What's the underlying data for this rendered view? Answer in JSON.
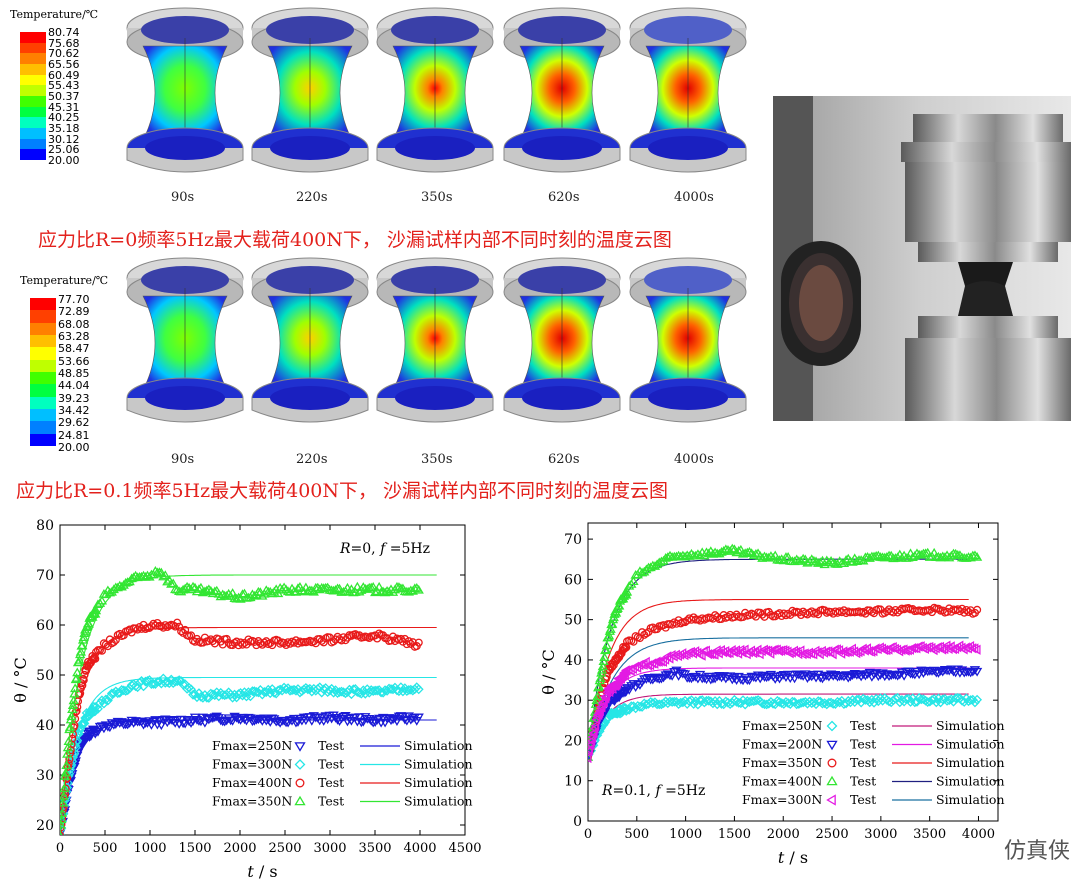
{
  "top_panel": {
    "legend_title": "Temperature/℃",
    "legend_values": [
      "80.74",
      "75.68",
      "70.62",
      "65.56",
      "60.49",
      "55.43",
      "50.37",
      "45.31",
      "40.25",
      "35.18",
      "30.12",
      "25.06",
      "20.00"
    ],
    "times": [
      "90s",
      "220s",
      "350s",
      "620s",
      "4000s"
    ],
    "caption": "应力比R=0频率5Hz最大载荷400N下， 沙漏试样内部不同时刻的温度云图"
  },
  "bottom_panel": {
    "legend_title": "Temperature/℃",
    "legend_values": [
      "77.70",
      "72.89",
      "68.08",
      "63.28",
      "58.47",
      "53.66",
      "48.85",
      "44.04",
      "39.23",
      "34.42",
      "29.62",
      "24.81",
      "20.00"
    ],
    "times": [
      "90s",
      "220s",
      "350s",
      "620s",
      "4000s"
    ],
    "caption": "应力比R=0.1频率5Hz最大载荷400N下， 沙漏试样内部不同时刻的温度云图"
  },
  "colors": {
    "scale": [
      "#ff0000",
      "#ff4000",
      "#ff8000",
      "#ffbf00",
      "#ffff00",
      "#bfff00",
      "#40ff00",
      "#00ff40",
      "#00ffbf",
      "#00bfff",
      "#0080ff",
      "#0000ff"
    ],
    "caption": "#e3211c"
  },
  "watermark": "仿真侠",
  "chart_data": [
    {
      "type": "line",
      "annotation_r": "R",
      "annotation_rest": "=0,",
      "annotation_f": "f",
      "annotation_f_rest": "=5Hz",
      "xlabel_italic": "t",
      "xlabel_rest": " / s",
      "ylabel": "θ / °C",
      "xlim": [
        0,
        4500
      ],
      "ylim": [
        18,
        80
      ],
      "xticks": [
        0,
        500,
        1000,
        1500,
        2000,
        2500,
        3000,
        3500,
        4000,
        4500
      ],
      "yticks": [
        20,
        30,
        40,
        50,
        60,
        70,
        80
      ],
      "legend_placement": "bottom-right",
      "series": [
        {
          "name": "Fmax=250N",
          "marker": "down-triangle",
          "color": "#1a1ad6",
          "sim_plateau": 41,
          "test": [
            [
              0,
              18
            ],
            [
              100,
              28
            ],
            [
              200,
              35
            ],
            [
              300,
              38
            ],
            [
              500,
              40
            ],
            [
              800,
              40.5
            ],
            [
              1000,
              40.5
            ],
            [
              1500,
              41
            ],
            [
              2000,
              41.5
            ],
            [
              2500,
              41
            ],
            [
              3000,
              41.5
            ],
            [
              3500,
              41
            ],
            [
              4000,
              41.5
            ]
          ]
        },
        {
          "name": "Fmax=300N",
          "marker": "diamond",
          "color": "#26e6e6",
          "sim_plateau": 49.5,
          "test": [
            [
              0,
              18
            ],
            [
              100,
              30
            ],
            [
              200,
              38
            ],
            [
              300,
              42
            ],
            [
              500,
              45
            ],
            [
              800,
              48
            ],
            [
              1000,
              48.5
            ],
            [
              1300,
              49
            ],
            [
              1500,
              46
            ],
            [
              2000,
              46
            ],
            [
              2500,
              47
            ],
            [
              3000,
              47
            ],
            [
              3500,
              46.5
            ],
            [
              4000,
              47.5
            ]
          ]
        },
        {
          "name": "Fmax=400N",
          "marker": "circle",
          "color": "#e81a1a",
          "sim_plateau": 59.5,
          "test": [
            [
              0,
              18
            ],
            [
              100,
              33
            ],
            [
              200,
              45
            ],
            [
              300,
              52
            ],
            [
              500,
              56
            ],
            [
              800,
              59
            ],
            [
              1000,
              60
            ],
            [
              1300,
              60
            ],
            [
              1500,
              57
            ],
            [
              2000,
              56.5
            ],
            [
              2500,
              56.5
            ],
            [
              3000,
              57
            ],
            [
              3500,
              58
            ],
            [
              4000,
              56
            ]
          ]
        },
        {
          "name": "Fmax=350N",
          "marker": "up-triangle",
          "color": "#33e633",
          "sim_plateau": 70,
          "test": [
            [
              0,
              18
            ],
            [
              100,
              38
            ],
            [
              200,
              52
            ],
            [
              300,
              60
            ],
            [
              500,
              66
            ],
            [
              800,
              69
            ],
            [
              1000,
              70
            ],
            [
              1100,
              71
            ],
            [
              1300,
              67
            ],
            [
              1500,
              67
            ],
            [
              2000,
              65.5
            ],
            [
              2500,
              67
            ],
            [
              3000,
              67
            ],
            [
              3500,
              67
            ],
            [
              4000,
              67
            ]
          ]
        }
      ],
      "sim_colors": [
        "#1a1ad6",
        "#26e6e6",
        "#e81a1a",
        "#33e633"
      ],
      "legend_test_label": "Test",
      "legend_sim_label": "Simulation"
    },
    {
      "type": "line",
      "annotation_r": "R",
      "annotation_rest": "=0.1,",
      "annotation_f": "f",
      "annotation_f_rest": "=5Hz",
      "xlabel_italic": "t",
      "xlabel_rest": " / s",
      "ylabel": "θ / °C",
      "xlim": [
        0,
        4200
      ],
      "ylim": [
        0,
        74
      ],
      "xticks": [
        0,
        500,
        1000,
        1500,
        2000,
        2500,
        3000,
        3500,
        4000
      ],
      "yticks": [
        0,
        10,
        20,
        30,
        40,
        50,
        60,
        70
      ],
      "legend_placement": "bottom-right",
      "series": [
        {
          "name": "Fmax=250N",
          "marker": "diamond",
          "color": "#26e6e6",
          "sim_plateau": 31.5,
          "test": [
            [
              0,
              16
            ],
            [
              100,
              22
            ],
            [
              200,
              26
            ],
            [
              400,
              28
            ],
            [
              600,
              29
            ],
            [
              1000,
              29.5
            ],
            [
              1500,
              29.5
            ],
            [
              2000,
              29.5
            ],
            [
              2500,
              29.5
            ],
            [
              3000,
              30
            ],
            [
              3500,
              30
            ],
            [
              4000,
              30
            ]
          ]
        },
        {
          "name": "Fmax=200N",
          "marker": "down-triangle",
          "color": "#1a1ad6",
          "sim_plateau": 38,
          "test": [
            [
              0,
              16
            ],
            [
              100,
              24
            ],
            [
              200,
              29
            ],
            [
              400,
              33
            ],
            [
              600,
              35
            ],
            [
              900,
              37
            ],
            [
              1000,
              36
            ],
            [
              1500,
              35.5
            ],
            [
              2000,
              36
            ],
            [
              2500,
              36
            ],
            [
              3000,
              36.5
            ],
            [
              3500,
              37
            ],
            [
              4000,
              37.5
            ]
          ]
        },
        {
          "name": "Fmax=350N",
          "marker": "circle",
          "color": "#e81a1a",
          "sim_plateau": 55,
          "test": [
            [
              0,
              16
            ],
            [
              100,
              28
            ],
            [
              200,
              37
            ],
            [
              400,
              44
            ],
            [
              600,
              47
            ],
            [
              1000,
              50
            ],
            [
              1500,
              51
            ],
            [
              2000,
              51.5
            ],
            [
              2500,
              52
            ],
            [
              3000,
              52
            ],
            [
              3500,
              52.5
            ],
            [
              4000,
              52
            ]
          ]
        },
        {
          "name": "Fmax=400N",
          "marker": "up-triangle",
          "color": "#33e633",
          "sim_plateau": 65,
          "test": [
            [
              0,
              16
            ],
            [
              100,
              32
            ],
            [
              200,
              45
            ],
            [
              300,
              53
            ],
            [
              500,
              61
            ],
            [
              800,
              65
            ],
            [
              1000,
              66
            ],
            [
              1500,
              67
            ],
            [
              1700,
              66
            ],
            [
              2000,
              65
            ],
            [
              2500,
              64
            ],
            [
              3000,
              65.5
            ],
            [
              3500,
              66
            ],
            [
              4000,
              65.5
            ]
          ]
        },
        {
          "name": "Fmax=300N",
          "marker": "left-triangle",
          "color": "#e31ae3",
          "sim_plateau": 45.5,
          "test": [
            [
              0,
              16
            ],
            [
              100,
              26
            ],
            [
              200,
              32
            ],
            [
              400,
              37
            ],
            [
              600,
              39
            ],
            [
              1000,
              41.5
            ],
            [
              1500,
              42
            ],
            [
              2000,
              42
            ],
            [
              2500,
              42
            ],
            [
              3000,
              42.5
            ],
            [
              3500,
              43
            ],
            [
              4000,
              43
            ]
          ]
        }
      ],
      "sim_colors": [
        "#c21a7a",
        "#e31ae3",
        "#e81a1a",
        "#202080",
        "#1a70a0"
      ],
      "legend_test_label": "Test",
      "legend_sim_label": "Simulation"
    }
  ]
}
